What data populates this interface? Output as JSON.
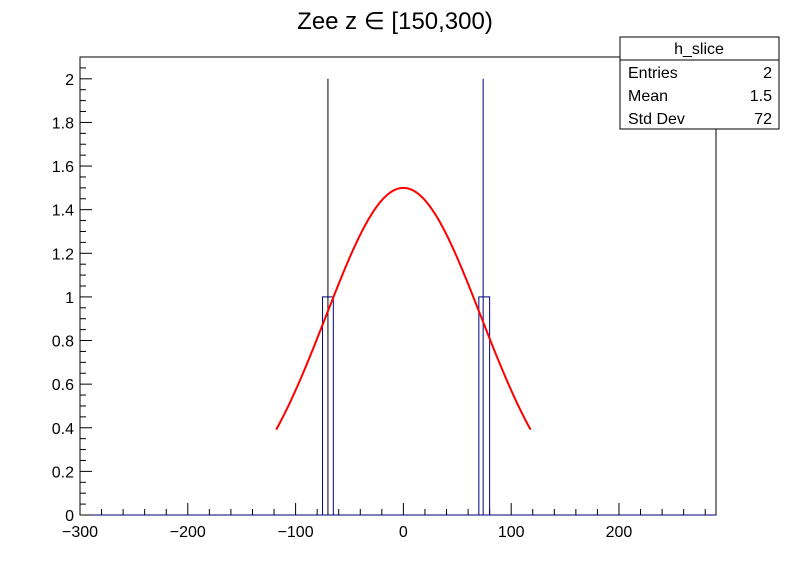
{
  "chart_data": {
    "type": "bar",
    "title": "Zee z ∈ [150,300)",
    "xlabel": "",
    "ylabel": "",
    "xlim": [
      -300,
      290
    ],
    "ylim": [
      0,
      2.1
    ],
    "x_ticks": [
      -300,
      -200,
      -100,
      0,
      100,
      200
    ],
    "x_tick_labels": [
      "−300",
      "−200",
      "−100",
      "0",
      "100",
      "200"
    ],
    "y_ticks": [
      0,
      0.2,
      0.4,
      0.6,
      0.8,
      1,
      1.2,
      1.4,
      1.6,
      1.8,
      2
    ],
    "y_tick_labels": [
      "0",
      "0.2",
      "0.4",
      "0.6",
      "0.8",
      "1",
      "1.2",
      "1.4",
      "1.6",
      "1.8",
      "2"
    ],
    "histogram": {
      "name": "h_slice",
      "color": "#000080",
      "bins": [
        {
          "x_low": -75,
          "x_high": -65,
          "value": 1
        },
        {
          "x_low": 70,
          "x_high": 80,
          "value": 1
        }
      ]
    },
    "spikes": [
      {
        "x": -70,
        "value": 2,
        "color": "#000000"
      },
      {
        "x": 74,
        "value": 2,
        "color": "#000080"
      }
    ],
    "fit": {
      "type": "gaussian",
      "color": "#ff0000",
      "amplitude": 1.5,
      "mean": 0,
      "sigma": 72,
      "x_range": [
        -118,
        118
      ]
    },
    "stats_box": {
      "title": "h_slice",
      "rows": [
        {
          "label": "Entries",
          "value": "2"
        },
        {
          "label": "Mean",
          "value": "1.5"
        },
        {
          "label": "Std Dev",
          "value": "72"
        }
      ]
    }
  }
}
